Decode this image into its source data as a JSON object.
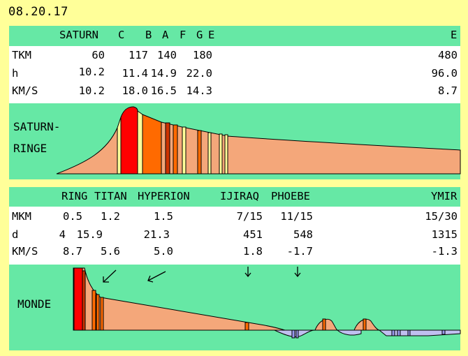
{
  "date": "08.20.17",
  "rings_panel": {
    "header": [
      "SATURN",
      "C",
      "B",
      "A",
      "F",
      "G",
      "E",
      "E"
    ],
    "rows": [
      {
        "label": "TKM",
        "values": [
          "60",
          "117",
          "140",
          "180",
          "480"
        ]
      },
      {
        "label": "h",
        "values": [
          "10.2",
          "11.4",
          "14.9",
          "22.0",
          "96.0"
        ]
      },
      {
        "label": "KM/S",
        "values": [
          "10.2",
          "18.0",
          "16.5",
          "14.3",
          "8.7"
        ]
      }
    ],
    "label_line1": "SATURN-",
    "label_line2": "RINGE"
  },
  "moons_panel": {
    "header": [
      "RING",
      "TITAN",
      "HYPERION",
      "IJIRAQ",
      "PHOEBE",
      "YMIR"
    ],
    "rows": [
      {
        "label": "MKM",
        "values": [
          "0.5",
          "1.2",
          "1.5",
          "7/15",
          "11/15",
          "15/30"
        ]
      },
      {
        "label": "d",
        "values": [
          "4",
          "15.9",
          "21.3",
          "451",
          "548",
          "1315"
        ]
      },
      {
        "label": "KM/S",
        "values": [
          "8.7",
          "5.6",
          "5.0",
          "1.8",
          "-1.7",
          "-1.3"
        ]
      }
    ],
    "label": "MONDE"
  },
  "colors": {
    "background": "#ffff99",
    "panel": "#66e8a5",
    "table": "#ffffff",
    "ring_fill": "#f4a77a",
    "red": "#ff0000",
    "orange": "#ff6a00",
    "light_yellow": "#ffff99",
    "retrograde": "#c0c0f0"
  }
}
